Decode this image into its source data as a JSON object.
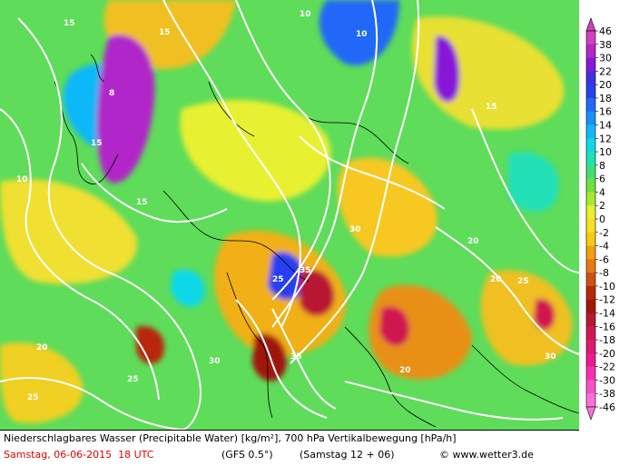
{
  "caption": {
    "title": "Niederschlagbares Wasser (Precipitable Water) [kg/m²], 700 hPa Vertikalbewegung [hPa/h]",
    "date": "Samstag, 06-06-2015  18 UTC",
    "model": "(GFS 0.5°)",
    "run": "(Samstag 12 + 06)",
    "copyright": "© www.wetter3.de"
  },
  "legend": {
    "ticks": [
      "46",
      "38",
      "30",
      "22",
      "20",
      "18",
      "16",
      "14",
      "12",
      "10",
      "8",
      "6",
      "4",
      "2",
      "0",
      "-2",
      "-4",
      "-6",
      "-8",
      "-10",
      "-12",
      "-14",
      "-16",
      "-18",
      "-20",
      "-22",
      "-30",
      "-38",
      "-46"
    ],
    "colors": [
      "#d040c0",
      "#b028c8",
      "#8818d8",
      "#4030e0",
      "#2840f0",
      "#2068f8",
      "#1890f8",
      "#10b8f8",
      "#10d8e8",
      "#20e0b8",
      "#40e070",
      "#70e040",
      "#a8e830",
      "#e8f030",
      "#f8e020",
      "#f8c818",
      "#f0a010",
      "#e87810",
      "#d05010",
      "#b82808",
      "#a01808",
      "#b81830",
      "#d01850",
      "#e01870",
      "#f01890",
      "#f830b0",
      "#f850c8",
      "#f870d8"
    ],
    "bg_color": "#5edc5a"
  },
  "contour_labels": [
    "15",
    "10",
    "8",
    "15",
    "20",
    "25",
    "30",
    "35",
    "15",
    "10",
    "20",
    "25",
    "30",
    "15",
    "20",
    "25",
    "30",
    "35",
    "10",
    "15",
    "20",
    "25"
  ]
}
